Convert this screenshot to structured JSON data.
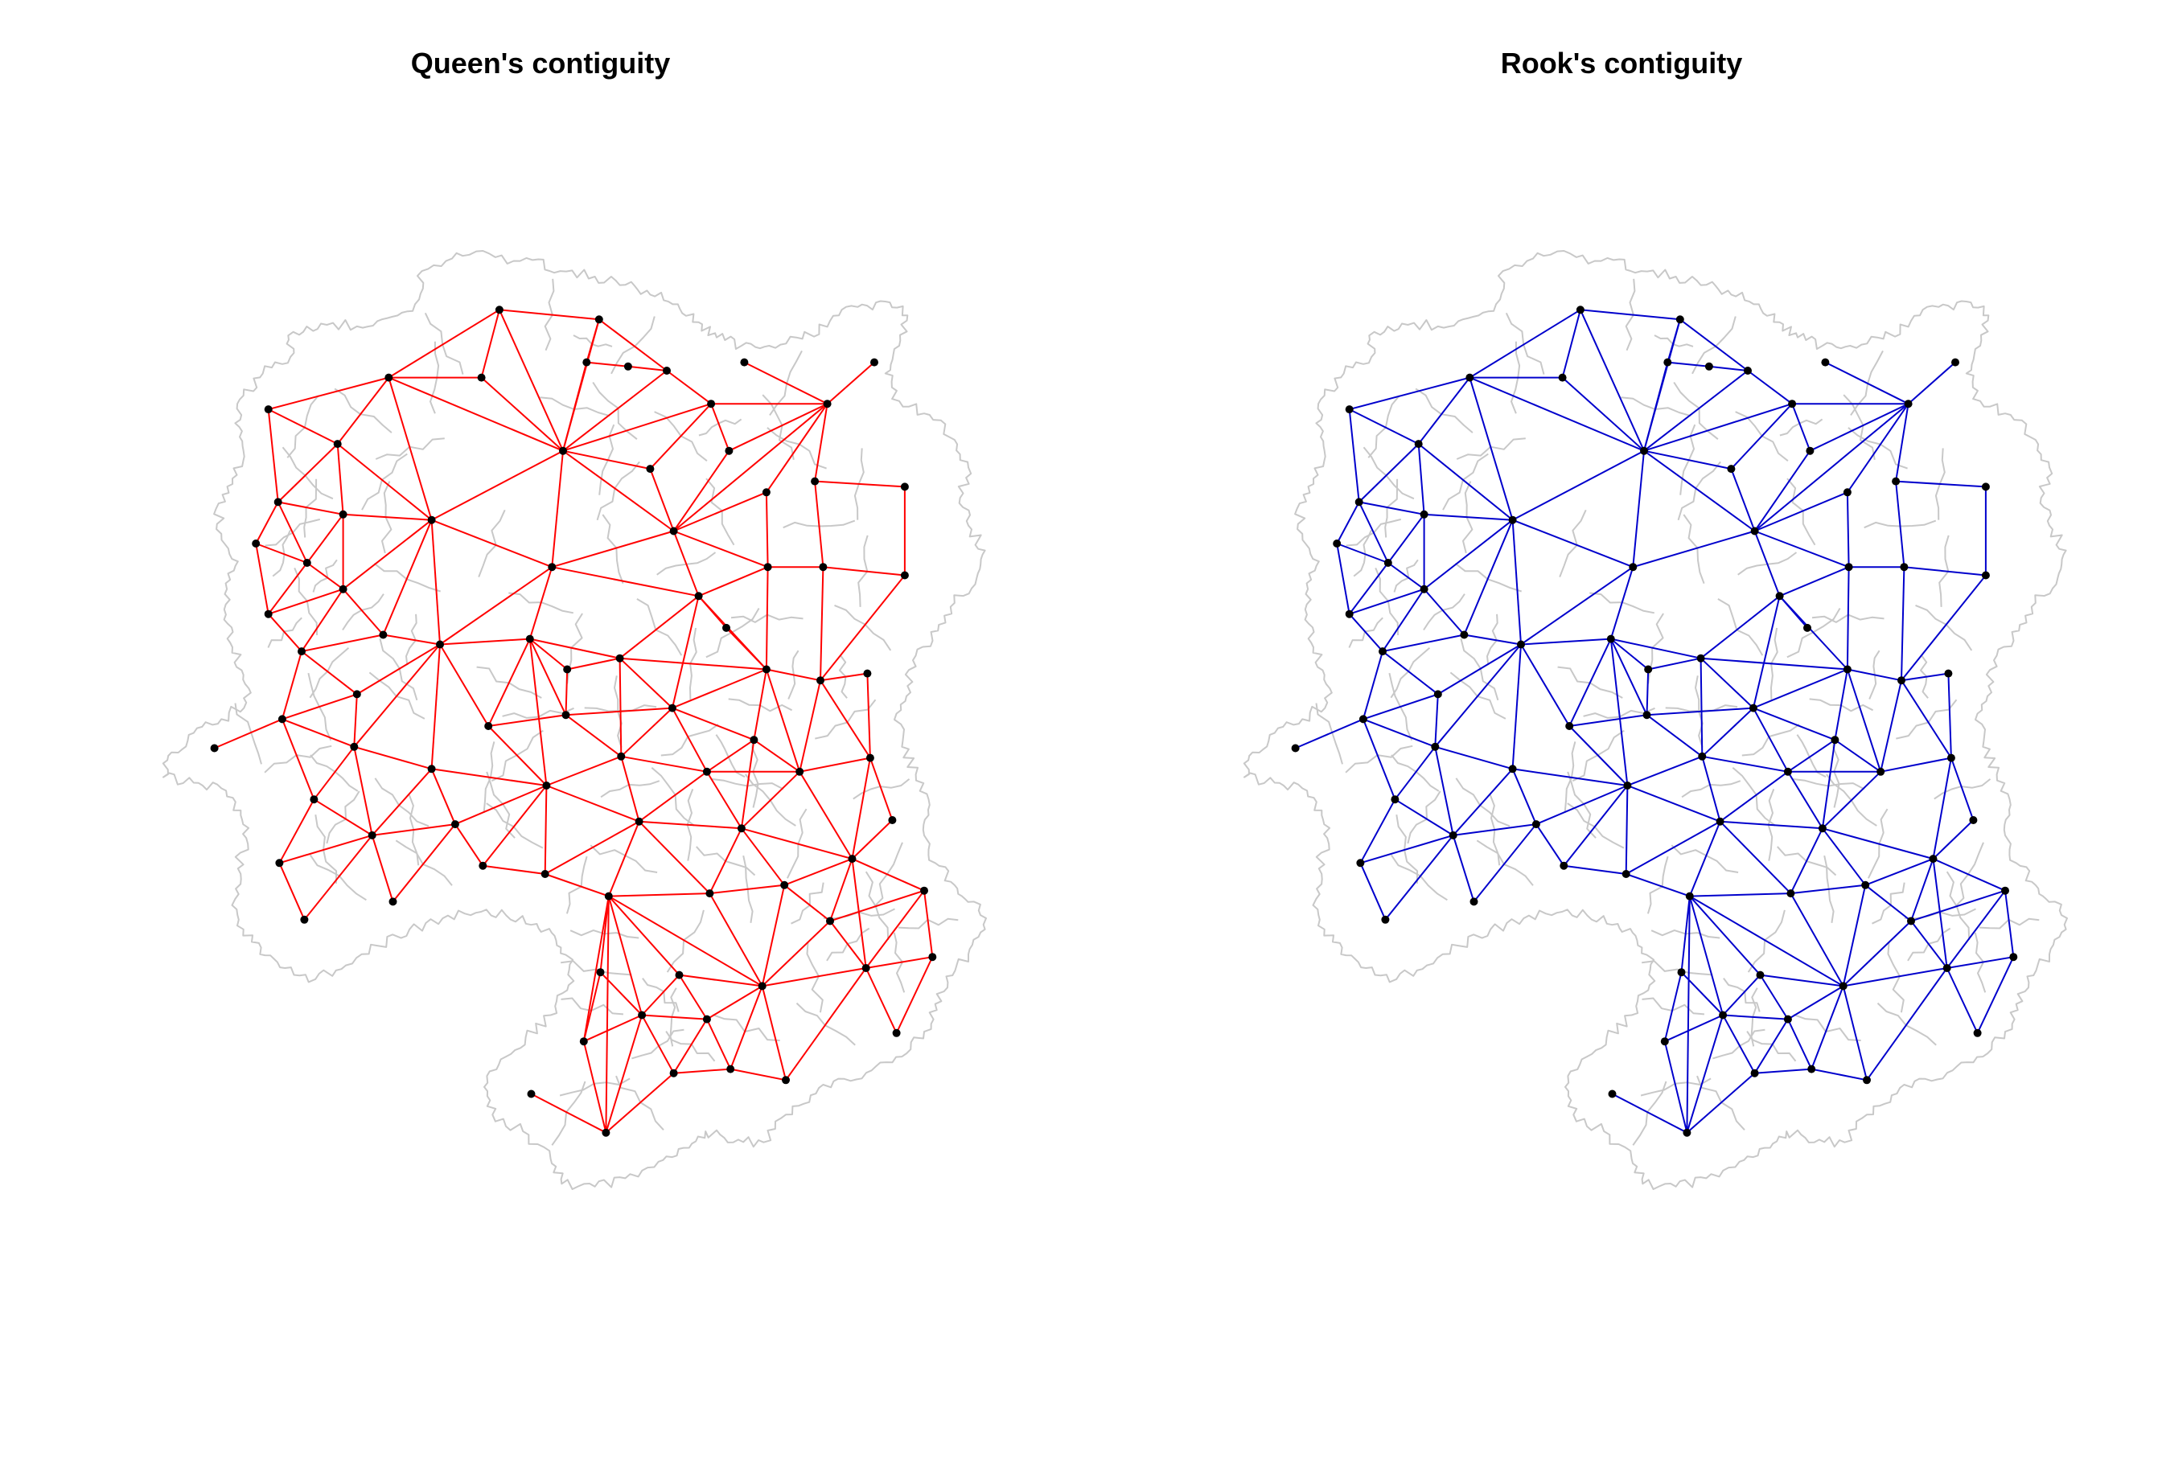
{
  "colors": {
    "background": "#ffffff",
    "boundary": "#c8c8c8",
    "node": "#000000",
    "queen_edge": "#ff0000",
    "rook_edge": "#0000cc"
  },
  "panels": [
    {
      "id": "queen",
      "title": "Queen's contiguity",
      "edge_color_key": "queen_edge"
    },
    {
      "id": "rook",
      "title": "Rook's contiguity",
      "edge_color_key": "rook_edge"
    }
  ]
}
